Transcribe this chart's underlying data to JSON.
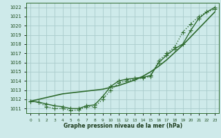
{
  "xlabel": "Graphe pression niveau de la mer (hPa)",
  "x": [
    0,
    1,
    2,
    3,
    4,
    5,
    6,
    7,
    8,
    9,
    10,
    11,
    12,
    13,
    14,
    15,
    16,
    17,
    18,
    19,
    20,
    21,
    22,
    23
  ],
  "series1": [
    1011.8,
    1011.7,
    1011.2,
    1011.0,
    1011.0,
    1010.8,
    1010.85,
    1011.2,
    1011.2,
    1012.0,
    1013.0,
    1013.8,
    1014.0,
    1014.2,
    1014.3,
    1014.5,
    1016.2,
    1017.0,
    1017.7,
    1019.3,
    1020.2,
    1021.0,
    1021.5,
    1021.8
  ],
  "series2": [
    1011.8,
    1011.7,
    1011.5,
    1011.3,
    1011.2,
    1011.0,
    1011.0,
    1011.3,
    1011.4,
    1012.3,
    1013.4,
    1014.0,
    1014.2,
    1014.3,
    1014.4,
    1014.6,
    1016.0,
    1016.8,
    1017.5,
    1018.0,
    1019.5,
    1020.8,
    1021.5,
    1022.0
  ],
  "series3": [
    1011.8,
    1012.0,
    1012.2,
    1012.4,
    1012.6,
    1012.7,
    1012.8,
    1012.9,
    1013.0,
    1013.1,
    1013.3,
    1013.5,
    1013.8,
    1014.1,
    1014.5,
    1015.0,
    1015.6,
    1016.3,
    1017.1,
    1017.9,
    1018.8,
    1019.7,
    1020.6,
    1021.5
  ],
  "ylim": [
    1010.5,
    1022.5
  ],
  "yticks": [
    1011,
    1012,
    1013,
    1014,
    1015,
    1016,
    1017,
    1018,
    1019,
    1020,
    1021,
    1022
  ],
  "line_color": "#2d6a2d",
  "bg_color": "#ceeaea",
  "grid_color": "#aacccc",
  "text_color": "#1a4a1a",
  "xlabel_color": "#1a3a1a",
  "marker": "+",
  "linewidth": 1.0,
  "markersize": 4
}
